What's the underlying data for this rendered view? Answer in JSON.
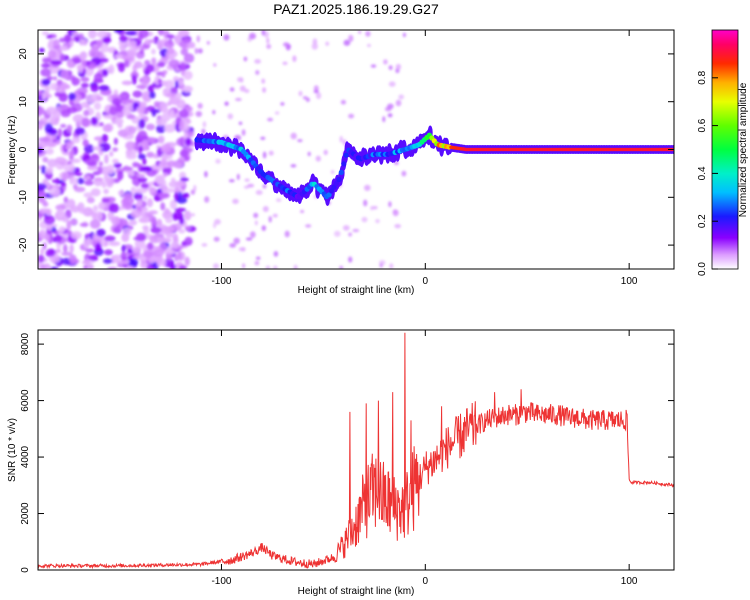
{
  "figure_title": "PAZ1.2025.186.19.29.G27",
  "chart_data": [
    {
      "type": "heatmap",
      "title": "PAZ1.2025.186.19.29.G27",
      "xlabel": "Height of straight line (km)",
      "ylabel": "Frequency (Hz)",
      "xlim": [
        -190,
        122
      ],
      "ylim": [
        -25,
        25
      ],
      "xticks": [
        -100,
        0,
        100
      ],
      "xtick_labels": [
        "-100",
        "0",
        "100"
      ],
      "yticks": [
        20,
        10,
        0,
        -10,
        -20
      ],
      "ytick_labels": [
        "20",
        "10",
        "0",
        "-10",
        "-20"
      ],
      "colorbar": {
        "label": "Normalized spectral amplitude",
        "range": [
          0,
          1
        ],
        "ticks": [
          0.0,
          0.2,
          0.4,
          0.6,
          0.8
        ],
        "tick_labels": [
          "0.0",
          "0.2",
          "0.4",
          "0.6",
          "0.8"
        ],
        "colormap": "rainbow (white-magenta-blue-cyan-green-yellow-red-magenta)"
      },
      "ridge": {
        "x": [
          -112,
          -100,
          -90,
          -80,
          -70,
          -62,
          -55,
          -48,
          -42,
          -38,
          -32,
          -25,
          -18,
          -10,
          -3,
          2,
          6,
          12,
          20,
          40,
          60,
          80,
          100,
          122
        ],
        "frequency": [
          2,
          1.5,
          0,
          -5,
          -8,
          -10,
          -7,
          -10,
          -6,
          0,
          -2,
          -1,
          -1,
          0,
          1,
          3,
          1,
          0.5,
          0,
          0,
          0,
          0,
          0,
          0
        ],
        "amplitude": [
          0.25,
          0.3,
          0.3,
          0.25,
          0.25,
          0.2,
          0.35,
          0.3,
          0.2,
          0.25,
          0.2,
          0.25,
          0.25,
          0.3,
          0.4,
          0.45,
          0.75,
          0.85,
          0.9,
          0.9,
          0.9,
          0.9,
          0.9,
          0.9
        ]
      },
      "noise_region_x": [
        -190,
        -115
      ]
    },
    {
      "type": "line",
      "xlabel": "Height of straight line (km)",
      "ylabel": "SNR (10 * v/v)",
      "xlim": [
        -190,
        122
      ],
      "ylim": [
        0,
        8500
      ],
      "xticks": [
        -100,
        0,
        100
      ],
      "xtick_labels": [
        "-100",
        "0",
        "100"
      ],
      "yticks": [
        0,
        2000,
        4000,
        6000,
        8000
      ],
      "ytick_labels": [
        "0",
        "2000",
        "4000",
        "6000",
        "8000"
      ],
      "color": "#ee3333",
      "series": [
        {
          "x": [
            -190,
            -150,
            -110,
            -95,
            -85,
            -80,
            -75,
            -65,
            -55,
            -45,
            -40,
            -35,
            -30,
            -25,
            -20,
            -15,
            -10,
            -5,
            0,
            5,
            10,
            15,
            20,
            25,
            30,
            35,
            40,
            45,
            50,
            55,
            60,
            65,
            70,
            75,
            80,
            85,
            90,
            95,
            99,
            100,
            101,
            110,
            122
          ],
          "values": [
            150,
            150,
            200,
            350,
            600,
            800,
            500,
            300,
            200,
            450,
            900,
            1500,
            2300,
            2800,
            2500,
            2200,
            2200,
            3000,
            3600,
            3900,
            4300,
            4600,
            4900,
            5100,
            5300,
            5400,
            5500,
            5500,
            5600,
            5500,
            5500,
            5500,
            5400,
            5400,
            5300,
            5300,
            5300,
            5300,
            5300,
            3200,
            3100,
            3100,
            3000
          ],
          "spikes": [
            {
              "x": -37,
              "value": 5600
            },
            {
              "x": -29,
              "value": 5900
            },
            {
              "x": -23,
              "value": 6000
            },
            {
              "x": -16,
              "value": 6300
            },
            {
              "x": -10,
              "value": 8400
            },
            {
              "x": -7,
              "value": 5300
            },
            {
              "x": 8,
              "value": 5800
            },
            {
              "x": 34,
              "value": 6300
            },
            {
              "x": 47,
              "value": 6400
            }
          ]
        }
      ]
    }
  ]
}
